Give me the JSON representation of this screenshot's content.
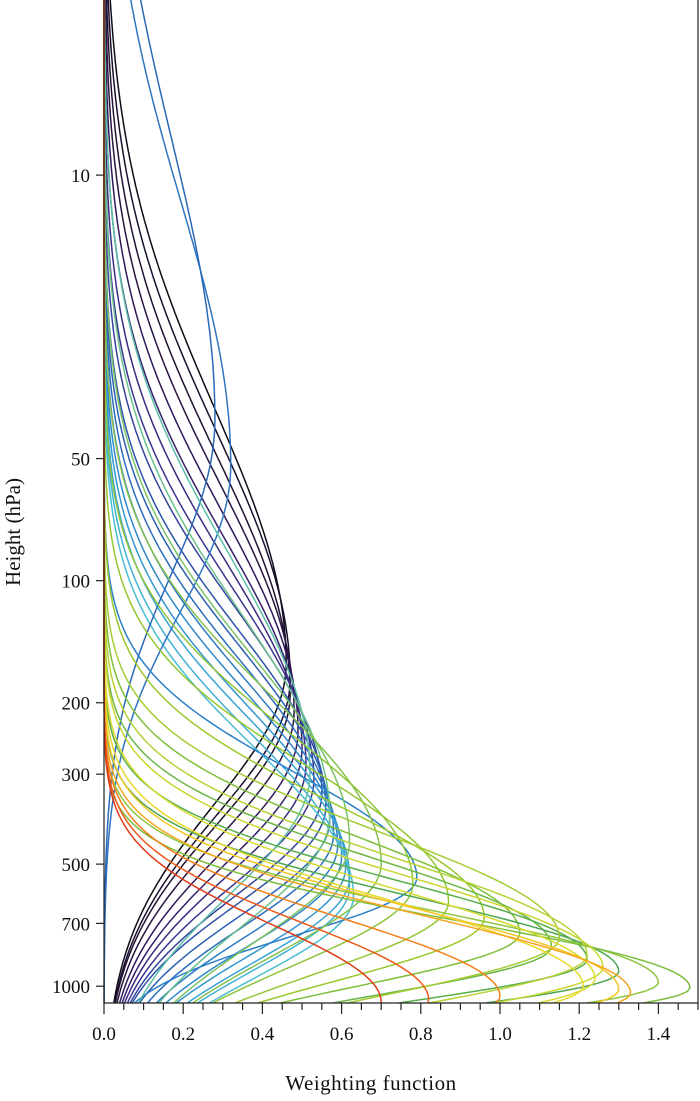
{
  "chart_data": {
    "type": "line",
    "title": "",
    "xlabel": "Weighting function",
    "ylabel": "Height (hPa)",
    "xlim": [
      0.0,
      1.5
    ],
    "ylim": [
      1100,
      3.7
    ],
    "y_scale": "log",
    "y_reversed": true,
    "grid": false,
    "legend": "none",
    "x_ticks": [
      "0.0",
      "0.2",
      "0.4",
      "0.6",
      "0.8",
      "1.0",
      "1.2",
      "1.4"
    ],
    "x_tick_values": [
      0.0,
      0.2,
      0.4,
      0.6,
      0.8,
      1.0,
      1.2,
      1.4
    ],
    "y_ticks": [
      "10",
      "50",
      "100",
      "200",
      "300",
      "500",
      "700",
      "1000"
    ],
    "y_tick_values": [
      10,
      50,
      100,
      200,
      300,
      500,
      700,
      1000
    ],
    "series": [
      {
        "color": "#0d0d1a",
        "peak_pressure": 160,
        "peak_value": 0.46,
        "width": 1.45
      },
      {
        "color": "#1a0f2e",
        "peak_pressure": 175,
        "peak_value": 0.47,
        "width": 1.4
      },
      {
        "color": "#231133",
        "peak_pressure": 190,
        "peak_value": 0.47,
        "width": 1.35
      },
      {
        "color": "#2a1440",
        "peak_pressure": 210,
        "peak_value": 0.48,
        "width": 1.3
      },
      {
        "color": "#30175a",
        "peak_pressure": 235,
        "peak_value": 0.49,
        "width": 1.25
      },
      {
        "color": "#36206e",
        "peak_pressure": 260,
        "peak_value": 0.5,
        "width": 1.2
      },
      {
        "color": "#3b2a80",
        "peak_pressure": 285,
        "peak_value": 0.51,
        "width": 1.15
      },
      {
        "color": "#3a3690",
        "peak_pressure": 310,
        "peak_value": 0.53,
        "width": 1.1
      },
      {
        "color": "#35439c",
        "peak_pressure": 335,
        "peak_value": 0.55,
        "width": 1.05
      },
      {
        "color": "#2e52a8",
        "peak_pressure": 360,
        "peak_value": 0.56,
        "width": 1.0
      },
      {
        "color": "#2a5fb2",
        "peak_pressure": 390,
        "peak_value": 0.57,
        "width": 0.98
      },
      {
        "color": "#2b6dbc",
        "peak_pressure": 420,
        "peak_value": 0.58,
        "width": 0.96
      },
      {
        "color": "#2d7bc4",
        "peak_pressure": 450,
        "peak_value": 0.59,
        "width": 0.94
      },
      {
        "color": "#2f88ca",
        "peak_pressure": 480,
        "peak_value": 0.6,
        "width": 0.92
      },
      {
        "color": "#3296cf",
        "peak_pressure": 510,
        "peak_value": 0.61,
        "width": 0.9
      },
      {
        "color": "#38a4d3",
        "peak_pressure": 540,
        "peak_value": 0.62,
        "width": 0.88
      },
      {
        "color": "#41b1d5",
        "peak_pressure": 570,
        "peak_value": 0.62,
        "width": 0.86
      },
      {
        "color": "#4bbdd3",
        "peak_pressure": 600,
        "peak_value": 0.63,
        "width": 0.84
      },
      {
        "color": "#2f74c0",
        "peak_pressure": 52,
        "peak_value": 0.32,
        "width": 1.5
      },
      {
        "color": "#2a68b8",
        "peak_pressure": 40,
        "peak_value": 0.28,
        "width": 1.6
      },
      {
        "color": "#2b7fc6",
        "peak_pressure": 540,
        "peak_value": 0.79,
        "width": 0.6
      },
      {
        "color": "#5cbfa8",
        "peak_pressure": 300,
        "peak_value": 0.52,
        "width": 1.25
      },
      {
        "color": "#6bc18c",
        "peak_pressure": 380,
        "peak_value": 0.57,
        "width": 1.15
      },
      {
        "color": "#7cc266",
        "peak_pressure": 440,
        "peak_value": 0.62,
        "width": 1.05
      },
      {
        "color": "#86c14e",
        "peak_pressure": 500,
        "peak_value": 0.7,
        "width": 0.95
      },
      {
        "color": "#8fc43c",
        "peak_pressure": 560,
        "peak_value": 0.78,
        "width": 0.85
      },
      {
        "color": "#95c632",
        "peak_pressure": 620,
        "peak_value": 0.87,
        "width": 0.75
      },
      {
        "color": "#9ac82c",
        "peak_pressure": 680,
        "peak_value": 0.96,
        "width": 0.65
      },
      {
        "color": "#7fbf3a",
        "peak_pressure": 740,
        "peak_value": 1.05,
        "width": 0.55
      },
      {
        "color": "#6cb746",
        "peak_pressure": 800,
        "peak_value": 1.13,
        "width": 0.5
      },
      {
        "color": "#5aae4c",
        "peak_pressure": 860,
        "peak_value": 1.22,
        "width": 0.45
      },
      {
        "color": "#4ea650",
        "peak_pressure": 920,
        "peak_value": 1.3,
        "width": 0.42
      },
      {
        "color": "#8dc63f",
        "peak_pressure": 980,
        "peak_value": 1.4,
        "width": 0.4
      },
      {
        "color": "#7dbd3b",
        "peak_pressure": 1010,
        "peak_value": 1.48,
        "width": 0.38
      },
      {
        "color": "#a4cc35",
        "peak_pressure": 760,
        "peak_value": 1.15,
        "width": 0.6
      },
      {
        "color": "#b8d233",
        "peak_pressure": 840,
        "peak_value": 1.22,
        "width": 0.55
      },
      {
        "color": "#c9d631",
        "peak_pressure": 900,
        "peak_value": 1.26,
        "width": 0.52
      },
      {
        "color": "#d9da2f",
        "peak_pressure": 960,
        "peak_value": 1.24,
        "width": 0.5
      },
      {
        "color": "#e7d82c",
        "peak_pressure": 1000,
        "peak_value": 1.21,
        "width": 0.48
      },
      {
        "color": "#f2c625",
        "peak_pressure": 1020,
        "peak_value": 1.3,
        "width": 0.46
      },
      {
        "color": "#f6a620",
        "peak_pressure": 1040,
        "peak_value": 1.33,
        "width": 0.44
      },
      {
        "color": "#f4801c",
        "peak_pressure": 1060,
        "peak_value": 1.0,
        "width": 0.44
      },
      {
        "color": "#ee5a1a",
        "peak_pressure": 1080,
        "peak_value": 0.82,
        "width": 0.44
      },
      {
        "color": "#e03a18",
        "peak_pressure": 1095,
        "peak_value": 0.7,
        "width": 0.44
      }
    ]
  }
}
